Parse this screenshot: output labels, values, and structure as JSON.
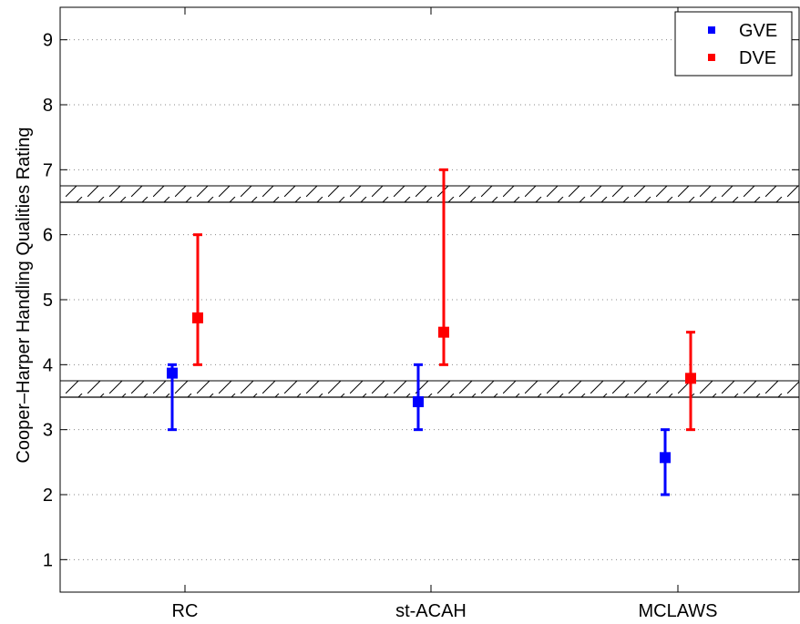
{
  "chart_data": {
    "type": "scatter",
    "title": "",
    "xlabel": "",
    "ylabel": "Cooper–Harper Handling Qualities Rating",
    "categories": [
      "RC",
      "st-ACAH",
      "MCLAWS"
    ],
    "ylim": [
      0.5,
      9.5
    ],
    "yticks": [
      "1",
      "2",
      "3",
      "4",
      "5",
      "6",
      "7",
      "8",
      "9"
    ],
    "grid": "y-dotted",
    "legend_position": "top-right",
    "series": [
      {
        "name": "GVE",
        "color": "#0000ff",
        "values": [
          3.87,
          3.43,
          2.57
        ],
        "low": [
          3.0,
          3.0,
          2.0
        ],
        "high": [
          4.0,
          4.0,
          3.0
        ]
      },
      {
        "name": "DVE",
        "color": "#ff0000",
        "values": [
          4.72,
          4.5,
          3.79
        ],
        "low": [
          4.0,
          4.0,
          3.0
        ],
        "high": [
          6.0,
          7.0,
          4.5
        ]
      }
    ],
    "boundary_lines": [
      3.5,
      6.5
    ]
  }
}
